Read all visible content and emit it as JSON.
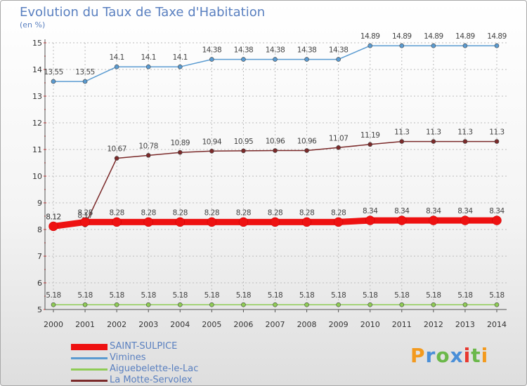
{
  "title": "Evolution du Taux de Taxe d'Habitation",
  "unit_label": "(en %)",
  "logo_text": "Proxiti",
  "colors": {
    "title": "#5a80c0",
    "grid": "#bcbcbc",
    "axis": "#555555"
  },
  "chart_data": {
    "type": "line",
    "x": [
      "2000",
      "2001",
      "2002",
      "2003",
      "2004",
      "2005",
      "2006",
      "2007",
      "2008",
      "2009",
      "2010",
      "2011",
      "2012",
      "2013",
      "2014"
    ],
    "ylim": [
      5,
      15
    ],
    "yticks": [
      "5",
      "6",
      "7",
      "8",
      "9",
      "10",
      "11",
      "12",
      "13",
      "14",
      "15"
    ],
    "grid": true,
    "legend_position": "bottom-left",
    "series": [
      {
        "name": "SAINT-SULPICE",
        "color": "#ee1111",
        "values": [
          8.12,
          8.28,
          8.28,
          8.28,
          8.28,
          8.28,
          8.28,
          8.28,
          8.28,
          8.28,
          8.34,
          8.34,
          8.34,
          8.34,
          8.34
        ],
        "labels": [
          "8.12",
          "8.28",
          "8.28",
          "8.28",
          "8.28",
          "8.28",
          "8.28",
          "8.28",
          "8.28",
          "8.28",
          "8.34",
          "8.34",
          "8.34",
          "8.34",
          "8.34"
        ]
      },
      {
        "name": "Vimines",
        "color": "#5a9bd1",
        "values": [
          13.55,
          13.55,
          14.1,
          14.1,
          14.1,
          14.38,
          14.38,
          14.38,
          14.38,
          14.38,
          14.89,
          14.89,
          14.89,
          14.89,
          14.89
        ],
        "labels": [
          "13.55",
          "13.55",
          "14.1",
          "14.1",
          "14.1",
          "14.38",
          "14.38",
          "14.38",
          "14.38",
          "14.38",
          "14.89",
          "14.89",
          "14.89",
          "14.89",
          "14.89"
        ]
      },
      {
        "name": "Aiguebelette-le-Lac",
        "color": "#8fcc55",
        "values": [
          5.18,
          5.18,
          5.18,
          5.18,
          5.18,
          5.18,
          5.18,
          5.18,
          5.18,
          5.18,
          5.18,
          5.18,
          5.18,
          5.18,
          5.18
        ],
        "labels": [
          "5.18",
          "5.18",
          "5.18",
          "5.18",
          "5.18",
          "5.18",
          "5.18",
          "5.18",
          "5.18",
          "5.18",
          "5.18",
          "5.18",
          "5.18",
          "5.18",
          "5.18"
        ]
      },
      {
        "name": "La Motte-Servolex",
        "color": "#7b2a2a",
        "values": [
          8.12,
          8.17,
          10.67,
          10.78,
          10.89,
          10.94,
          10.95,
          10.96,
          10.96,
          11.07,
          11.19,
          11.3,
          11.3,
          11.3,
          11.3
        ],
        "labels": [
          "8.12",
          "8.17",
          "10.67",
          "10.78",
          "10.89",
          "10.94",
          "10.95",
          "10.96",
          "10.96",
          "11.07",
          "11.19",
          "11.3",
          "11.3",
          "11.3",
          "11.3"
        ]
      }
    ]
  }
}
